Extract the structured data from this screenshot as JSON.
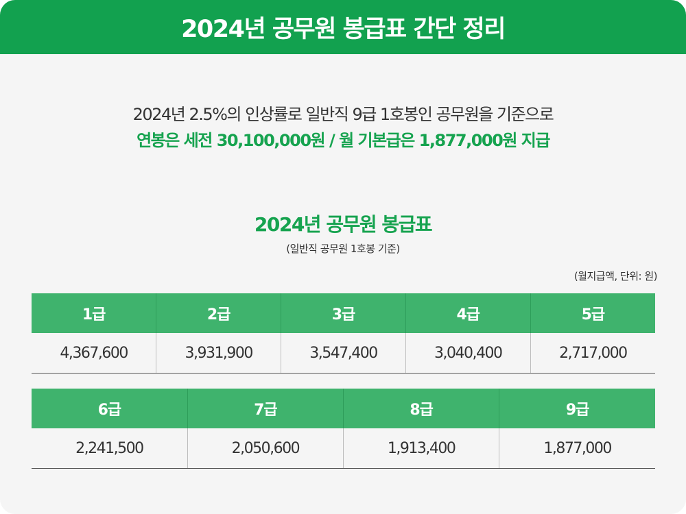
{
  "header": {
    "title": "2024년 공무원 봉급표 간단 정리"
  },
  "intro": {
    "line1": "2024년 2.5%의 인상률로 일반직 9급 1호봉인 공무원을 기준으로",
    "line2": "연봉은 세전 30,100,000원 / 월 기본급은 1,877,000원 지급"
  },
  "table": {
    "title": "2024년 공무원 봉급표",
    "subtitle": "(일반직 공무원 1호봉 기준)",
    "unit_note": "(월지급액, 단위: 원)",
    "row1": [
      {
        "grade": "1급",
        "pay": "4,367,600"
      },
      {
        "grade": "2급",
        "pay": "3,931,900"
      },
      {
        "grade": "3급",
        "pay": "3,547,400"
      },
      {
        "grade": "4급",
        "pay": "3,040,400"
      },
      {
        "grade": "5급",
        "pay": "2,717,000"
      }
    ],
    "row2": [
      {
        "grade": "6급",
        "pay": "2,241,500"
      },
      {
        "grade": "7급",
        "pay": "2,050,600"
      },
      {
        "grade": "8급",
        "pay": "1,913,400"
      },
      {
        "grade": "9급",
        "pay": "1,877,000"
      }
    ]
  },
  "colors": {
    "header_bg": "#12a14f",
    "accent_text": "#16a34f",
    "table_header_bg": "#3fb36d",
    "background": "#f5f5f5"
  }
}
